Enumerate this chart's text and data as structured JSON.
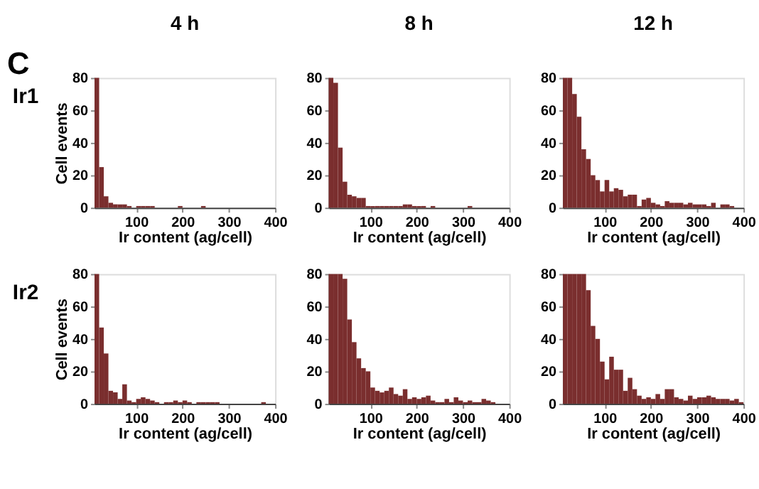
{
  "chart_data": [
    {
      "type": "histogram",
      "title": "4 h",
      "xlabel": "Ir content (ag/cell)",
      "ylabel": "Cell events",
      "annotations": [
        "C",
        "Ir1"
      ],
      "color": "#7a2e2e",
      "xlim": [
        10,
        400
      ],
      "xticks": [
        100,
        200,
        300,
        400
      ],
      "ylim": [
        0,
        80
      ],
      "yticks": [
        0,
        20,
        40,
        60,
        80
      ],
      "grid": false,
      "bins": [
        10,
        20,
        30,
        40,
        50,
        60,
        70,
        80,
        90,
        100,
        110,
        120,
        130,
        140,
        150,
        160,
        170,
        180,
        190,
        200,
        210,
        220,
        230,
        240,
        250,
        260,
        270,
        280,
        290,
        300,
        310,
        320,
        330,
        340,
        350,
        360,
        370,
        380,
        390,
        400
      ],
      "values": [
        80,
        25,
        7,
        3,
        2,
        2,
        2,
        1,
        0,
        1,
        1,
        1,
        1,
        0,
        0,
        0,
        0,
        0,
        1,
        0,
        0,
        0,
        0,
        1,
        0,
        0,
        0,
        0,
        0,
        0,
        0,
        0,
        0,
        0,
        0,
        0,
        0,
        0,
        0
      ]
    },
    {
      "type": "histogram",
      "title": "8 h",
      "xlabel": "Ir content (ag/cell)",
      "color": "#7a2e2e",
      "xlim": [
        10,
        400
      ],
      "xticks": [
        100,
        200,
        300,
        400
      ],
      "ylim": [
        0,
        80
      ],
      "yticks": [
        0,
        20,
        40,
        60,
        80
      ],
      "grid": false,
      "bins": [
        10,
        20,
        30,
        40,
        50,
        60,
        70,
        80,
        90,
        100,
        110,
        120,
        130,
        140,
        150,
        160,
        170,
        180,
        190,
        200,
        210,
        220,
        230,
        240,
        250,
        260,
        270,
        280,
        290,
        300,
        310,
        320,
        330,
        340,
        350,
        360,
        370,
        380,
        390,
        400
      ],
      "values": [
        80,
        77,
        37,
        16,
        8,
        7,
        6,
        6,
        1,
        1,
        1,
        1,
        1,
        1,
        1,
        1,
        2,
        2,
        1,
        1,
        1,
        0,
        1,
        0,
        0,
        0,
        0,
        0,
        0,
        0,
        1,
        0,
        0,
        0,
        0,
        0,
        0,
        0,
        0
      ]
    },
    {
      "type": "histogram",
      "title": "12 h",
      "xlabel": "Ir content (ag/cell)",
      "color": "#7a2e2e",
      "xlim": [
        10,
        400
      ],
      "xticks": [
        100,
        200,
        300,
        400
      ],
      "ylim": [
        0,
        80
      ],
      "yticks": [
        0,
        20,
        40,
        60,
        80
      ],
      "grid": false,
      "bins": [
        10,
        20,
        30,
        40,
        50,
        60,
        70,
        80,
        90,
        100,
        110,
        120,
        130,
        140,
        150,
        160,
        170,
        180,
        190,
        200,
        210,
        220,
        230,
        240,
        250,
        260,
        270,
        280,
        290,
        300,
        310,
        320,
        330,
        340,
        350,
        360,
        370,
        380,
        390,
        400
      ],
      "values": [
        80,
        80,
        70,
        56,
        36,
        30,
        20,
        17,
        10,
        17,
        10,
        12,
        11,
        7,
        8,
        8,
        1,
        5,
        6,
        3,
        2,
        1,
        4,
        3,
        3,
        3,
        2,
        3,
        2,
        2,
        2,
        1,
        3,
        0,
        2,
        2,
        1,
        0,
        0
      ]
    },
    {
      "type": "histogram",
      "xlabel": "Ir content (ag/cell)",
      "ylabel": "Cell events",
      "annotations": [
        "Ir2"
      ],
      "color": "#7a2e2e",
      "xlim": [
        10,
        400
      ],
      "xticks": [
        100,
        200,
        300,
        400
      ],
      "ylim": [
        0,
        80
      ],
      "yticks": [
        0,
        20,
        40,
        60,
        80
      ],
      "grid": false,
      "bins": [
        10,
        20,
        30,
        40,
        50,
        60,
        70,
        80,
        90,
        100,
        110,
        120,
        130,
        140,
        150,
        160,
        170,
        180,
        190,
        200,
        210,
        220,
        230,
        240,
        250,
        260,
        270,
        280,
        290,
        300,
        310,
        320,
        330,
        340,
        350,
        360,
        370,
        380,
        390,
        400
      ],
      "values": [
        80,
        47,
        31,
        8,
        7,
        3,
        12,
        2,
        1,
        3,
        4,
        3,
        2,
        1,
        0,
        1,
        1,
        2,
        1,
        2,
        1,
        0,
        1,
        1,
        1,
        1,
        1,
        0,
        0,
        0,
        0,
        0,
        0,
        0,
        0,
        0,
        1,
        0,
        0
      ]
    },
    {
      "type": "histogram",
      "xlabel": "Ir content (ag/cell)",
      "color": "#7a2e2e",
      "xlim": [
        10,
        400
      ],
      "xticks": [
        100,
        200,
        300,
        400
      ],
      "ylim": [
        0,
        80
      ],
      "yticks": [
        0,
        20,
        40,
        60,
        80
      ],
      "grid": false,
      "bins": [
        10,
        20,
        30,
        40,
        50,
        60,
        70,
        80,
        90,
        100,
        110,
        120,
        130,
        140,
        150,
        160,
        170,
        180,
        190,
        200,
        210,
        220,
        230,
        240,
        250,
        260,
        270,
        280,
        290,
        300,
        310,
        320,
        330,
        340,
        350,
        360,
        370,
        380,
        390,
        400
      ],
      "values": [
        80,
        80,
        80,
        77,
        52,
        38,
        28,
        22,
        20,
        10,
        8,
        7,
        8,
        10,
        6,
        5,
        9,
        3,
        4,
        3,
        4,
        5,
        2,
        1,
        1,
        3,
        1,
        4,
        2,
        1,
        2,
        1,
        1,
        3,
        2,
        1,
        0,
        0,
        0
      ]
    },
    {
      "type": "histogram",
      "xlabel": "Ir content (ag/cell)",
      "color": "#7a2e2e",
      "xlim": [
        10,
        400
      ],
      "xticks": [
        100,
        200,
        300,
        400
      ],
      "ylim": [
        0,
        80
      ],
      "yticks": [
        0,
        20,
        40,
        60,
        80
      ],
      "grid": false,
      "bins": [
        10,
        20,
        30,
        40,
        50,
        60,
        70,
        80,
        90,
        100,
        110,
        120,
        130,
        140,
        150,
        160,
        170,
        180,
        190,
        200,
        210,
        220,
        230,
        240,
        250,
        260,
        270,
        280,
        290,
        300,
        310,
        320,
        330,
        340,
        350,
        360,
        370,
        380,
        390,
        400
      ],
      "values": [
        80,
        80,
        80,
        80,
        80,
        70,
        48,
        40,
        26,
        15,
        29,
        21,
        21,
        8,
        16,
        9,
        5,
        3,
        4,
        3,
        6,
        3,
        9,
        9,
        4,
        3,
        2,
        5,
        3,
        4,
        4,
        5,
        4,
        3,
        3,
        3,
        2,
        3,
        1
      ]
    }
  ]
}
